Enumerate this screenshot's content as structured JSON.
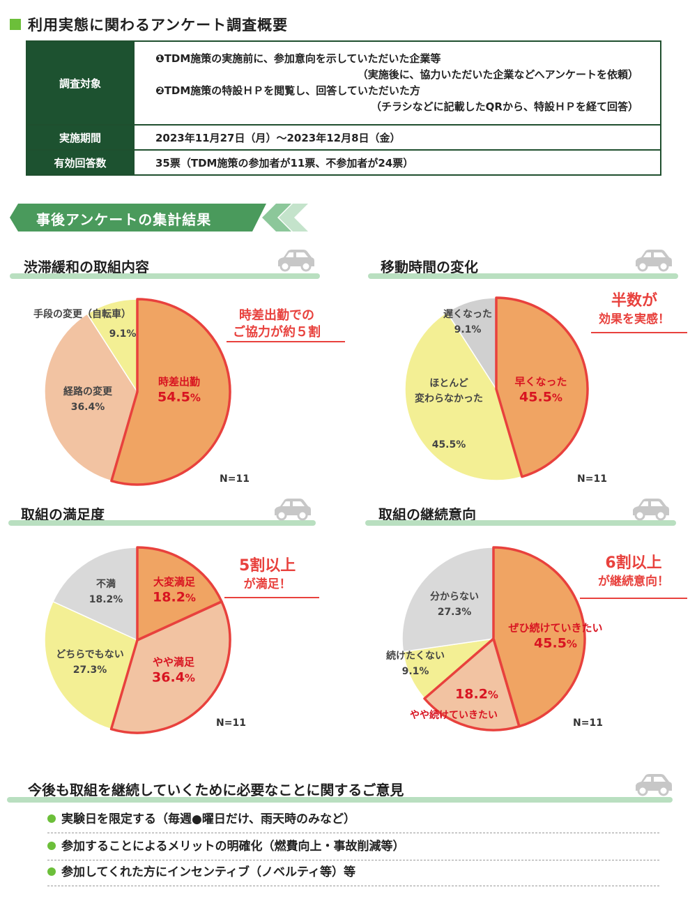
{
  "header": {
    "title": "利用実態に関わるアンケート調査概要"
  },
  "survey_table": {
    "target_label": "調査対象",
    "target_lines": [
      "❶TDM施策の実施前に、参加意向を示していただいた企業等",
      "（実施後に、協力いただいた企業などへアンケートを依頼）",
      "❷TDM施策の特設ＨＰを閲覧し、回答していただいた方",
      "（チラシなどに記載したQRから、特設ＨＰを経て回答）"
    ],
    "period_label": "実施期間",
    "period_value": "2023年11月27日（月）～2023年12月8日（金）",
    "responses_label": "有効回答数",
    "responses_value": "35票（TDM施策の参加者が11票、不参加者が24票）"
  },
  "results_banner": {
    "title": "事後アンケートの集計結果"
  },
  "colors": {
    "orange": "#f0a463",
    "peach": "#f2c3a2",
    "yellow": "#f3ef94",
    "gray": "#d9d9d9",
    "highlight": "#e8413d",
    "green_dark": "#1d5230",
    "green_bar": "#b9dfc0"
  },
  "chart_data": [
    {
      "type": "pie",
      "title": "渋滞緩和の取組内容",
      "n_label": "N=11",
      "slices": [
        {
          "label": "時差出勤",
          "value": 54.5,
          "value_text": "54.5",
          "unit": "%",
          "color": "#f0a463",
          "highlight": true
        },
        {
          "label": "経路の変更",
          "value": 36.4,
          "value_text": "36.4%",
          "color": "#f2c3a2",
          "highlight": false
        },
        {
          "label": "手段の変更（自転車）",
          "value": 9.1,
          "value_text": "9.1%",
          "color": "#f3ef94",
          "highlight": false
        }
      ],
      "callout": [
        "時差出勤での",
        "ご協力が約５割"
      ]
    },
    {
      "type": "pie",
      "title": "移動時間の変化",
      "n_label": "N=11",
      "slices": [
        {
          "label": "早くなった",
          "value": 45.5,
          "value_text": "45.5",
          "unit": "%",
          "color": "#f0a463",
          "highlight": true
        },
        {
          "label": "ほとんど\n変わらなかった",
          "value": 45.5,
          "value_text": "45.5%",
          "color": "#f3ef94",
          "highlight": false
        },
        {
          "label": "遅くなった",
          "value": 9.1,
          "value_text": "9.1%",
          "color": "#d0d0d0",
          "highlight": false
        }
      ],
      "callout": [
        "半数が",
        "効果を実感！"
      ]
    },
    {
      "type": "pie",
      "title": "取組の満足度",
      "n_label": "N=11",
      "slices": [
        {
          "label": "大変満足",
          "value": 18.2,
          "value_text": "18.2",
          "unit": "%",
          "color": "#f0a463",
          "highlight": true
        },
        {
          "label": "やや満足",
          "value": 36.4,
          "value_text": "36.4",
          "unit": "%",
          "color": "#f2c3a2",
          "highlight": true
        },
        {
          "label": "どちらでもない",
          "value": 27.3,
          "value_text": "27.3%",
          "color": "#f3ef94",
          "highlight": false
        },
        {
          "label": "不満",
          "value": 18.2,
          "value_text": "18.2%",
          "color": "#d9d9d9",
          "highlight": false
        }
      ],
      "callout": [
        "5割以上",
        "が満足！"
      ]
    },
    {
      "type": "pie",
      "title": "取組の継続意向",
      "n_label": "N=11",
      "slices": [
        {
          "label": "ぜひ続けていきたい",
          "value": 45.5,
          "value_text": "45.5",
          "unit": "%",
          "color": "#f0a463",
          "highlight": true
        },
        {
          "label": "やや続けていきたい",
          "value": 18.2,
          "value_text": "18.2",
          "unit": "%",
          "color": "#f2c3a2",
          "highlight": true
        },
        {
          "label": "続けたくない",
          "value": 9.1,
          "value_text": "9.1%",
          "color": "#f3ef94",
          "highlight": false
        },
        {
          "label": "分からない",
          "value": 27.3,
          "value_text": "27.3%",
          "color": "#d9d9d9",
          "highlight": false
        }
      ],
      "callout": [
        "6割以上",
        "が継続意向！"
      ]
    }
  ],
  "opinions": {
    "title": "今後も取組を継続していくために必要なことに関するご意見",
    "items": [
      "実験日を限定する（毎週●曜日だけ、雨天時のみなど）",
      "参加することによるメリットの明確化（燃費向上・事故削減等）",
      "参加してくれた方にインセンティブ（ノベルティ等）等"
    ]
  }
}
